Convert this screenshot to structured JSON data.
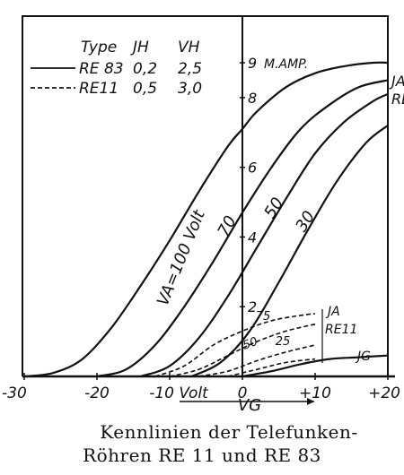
{
  "chart_data": {
    "type": "line",
    "xlim": [
      -30,
      20
    ],
    "ylim": [
      0,
      10
    ],
    "x_ticks": [
      -30,
      -20,
      -10,
      0,
      10,
      20
    ],
    "x_tick_labels": [
      "-30",
      "-20",
      "-10 Volt",
      "0",
      "+10",
      "+20"
    ],
    "y_ticks": [
      2,
      4,
      6,
      8,
      9
    ],
    "y_tick_labels": [
      "2",
      "4",
      "6",
      "8",
      "9"
    ],
    "y_unit": "M.AMP.",
    "x_label": "VG",
    "legend": {
      "header": [
        "Type",
        "JH",
        "VH"
      ],
      "rows": [
        {
          "style": "solid",
          "type": "RE 83",
          "jh": "0,2",
          "vh": "2,5"
        },
        {
          "style": "dashed",
          "type": "RE11",
          "jh": "0,5",
          "vh": "3,0"
        }
      ]
    },
    "series": [
      {
        "name": "VA=100 Volt",
        "tube": "RE 83",
        "style": "solid",
        "x": [
          -30,
          -26,
          -22,
          -18,
          -14,
          -10,
          -6,
          -2,
          0,
          2,
          6,
          10,
          14,
          18,
          20
        ],
        "y": [
          0,
          0.1,
          0.5,
          1.4,
          2.6,
          3.9,
          5.3,
          6.6,
          7.1,
          7.6,
          8.3,
          8.7,
          8.9,
          9.0,
          9.0
        ]
      },
      {
        "name": "70",
        "tube": "RE 83",
        "style": "solid",
        "x": [
          -20,
          -16,
          -12,
          -8,
          -4,
          0,
          4,
          8,
          12,
          16,
          20
        ],
        "y": [
          0,
          0.2,
          0.9,
          2.0,
          3.3,
          4.7,
          6.0,
          7.1,
          7.8,
          8.3,
          8.5
        ]
      },
      {
        "name": "50",
        "tube": "RE 83",
        "style": "solid",
        "x": [
          -14,
          -10,
          -6,
          -2,
          2,
          6,
          10,
          14,
          18,
          20
        ],
        "y": [
          0,
          0.3,
          1.1,
          2.3,
          3.7,
          5.1,
          6.4,
          7.3,
          7.9,
          8.1
        ]
      },
      {
        "name": "30",
        "tube": "RE 83",
        "style": "solid",
        "x": [
          -7,
          -3,
          1,
          5,
          9,
          13,
          17,
          20
        ],
        "y": [
          0,
          0.4,
          1.3,
          2.7,
          4.2,
          5.6,
          6.7,
          7.2
        ]
      },
      {
        "name": "75",
        "tube": "RE11",
        "style": "dashed",
        "x": [
          -12,
          -8,
          -4,
          0,
          4,
          8,
          10
        ],
        "y": [
          0,
          0.3,
          0.9,
          1.3,
          1.6,
          1.75,
          1.8
        ]
      },
      {
        "name": "50",
        "tube": "RE11",
        "style": "dashed",
        "x": [
          -10,
          -6,
          -2,
          2,
          6,
          10
        ],
        "y": [
          0,
          0.2,
          0.6,
          1.0,
          1.3,
          1.5
        ]
      },
      {
        "name": "25",
        "tube": "RE11",
        "style": "dashed",
        "x": [
          -6,
          -2,
          2,
          6,
          10
        ],
        "y": [
          0,
          0.15,
          0.45,
          0.7,
          0.9
        ]
      },
      {
        "name": "JG",
        "tube": "RE11",
        "style": "dashed",
        "x": [
          -2,
          2,
          6,
          10
        ],
        "y": [
          0,
          0.2,
          0.4,
          0.5
        ]
      },
      {
        "name": "JG",
        "tube": "RE 83",
        "style": "solid",
        "x": [
          0,
          4,
          8,
          12,
          16,
          20
        ],
        "y": [
          0,
          0.15,
          0.35,
          0.5,
          0.55,
          0.6
        ]
      }
    ],
    "annotations": [
      "JA",
      "RE11",
      "JA",
      "RE",
      "JG"
    ]
  },
  "caption": {
    "line1": "Kennlinien der Telefunken-",
    "line2": "Röhren RE 11 und RE 83"
  }
}
